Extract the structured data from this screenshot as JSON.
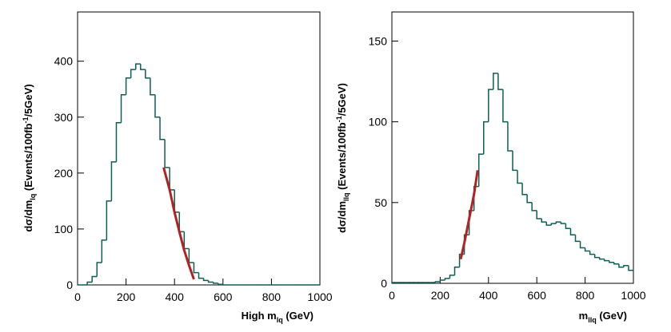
{
  "chart_data": [
    {
      "type": "histogram",
      "bins": [
        0,
        20,
        40,
        60,
        80,
        100,
        120,
        140,
        160,
        180,
        200,
        220,
        240,
        260,
        280,
        300,
        320,
        340,
        360,
        380,
        400,
        420,
        440,
        460,
        480,
        500,
        520,
        540,
        560,
        580,
        600,
        620,
        640,
        660,
        680,
        700,
        720,
        740,
        760,
        780,
        800,
        820,
        840,
        860,
        880,
        900,
        920,
        940,
        960,
        980,
        1000
      ],
      "values": [
        0,
        0,
        5,
        15,
        40,
        80,
        150,
        220,
        290,
        340,
        370,
        385,
        395,
        385,
        370,
        340,
        300,
        260,
        210,
        170,
        130,
        95,
        65,
        40,
        22,
        12,
        8,
        5,
        3,
        1,
        0,
        0,
        0,
        0,
        0,
        0,
        0,
        0,
        0,
        0,
        0,
        0,
        0,
        0,
        0,
        0,
        0,
        0,
        0,
        0
      ],
      "color": "#0f5e52",
      "xlim": [
        0,
        1000
      ],
      "xticks": [
        0,
        200,
        400,
        600,
        800,
        1000
      ],
      "ylim": [
        0,
        488
      ],
      "yticks": [
        0,
        100,
        200,
        300,
        400
      ],
      "x_label": [
        "High m",
        "lq",
        " (GeV)"
      ],
      "y_label": [
        "dσ/dm",
        "lq",
        " (Events/100fb",
        "-1",
        "/5GeV)"
      ],
      "fit": {
        "color": "#b22222",
        "x": [
          355,
          380,
          400,
          420,
          440,
          460,
          480
        ],
        "values": [
          210,
          170,
          130,
          95,
          62,
          35,
          10
        ]
      }
    },
    {
      "type": "histogram",
      "bins": [
        0,
        20,
        40,
        60,
        80,
        100,
        120,
        140,
        160,
        180,
        200,
        220,
        240,
        260,
        280,
        300,
        320,
        340,
        360,
        380,
        400,
        420,
        440,
        460,
        480,
        500,
        520,
        540,
        560,
        580,
        600,
        620,
        640,
        660,
        680,
        700,
        720,
        740,
        760,
        780,
        800,
        820,
        840,
        860,
        880,
        900,
        920,
        940,
        960,
        980,
        1000
      ],
      "values": [
        0.5,
        0.5,
        0.5,
        0.5,
        0.5,
        0.5,
        0.5,
        0.5,
        0.5,
        1,
        2,
        3,
        5,
        10,
        18,
        30,
        45,
        60,
        80,
        100,
        120,
        130,
        120,
        100,
        82,
        70,
        62,
        55,
        50,
        45,
        40,
        38,
        36,
        37,
        38,
        37,
        34,
        30,
        26,
        22,
        20,
        18,
        16,
        15,
        14,
        13,
        12,
        10,
        11,
        8
      ],
      "color": "#0f5e52",
      "xlim": [
        0,
        1000
      ],
      "xticks": [
        0,
        200,
        400,
        600,
        800,
        1000
      ],
      "ylim": [
        0,
        168
      ],
      "yticks": [
        0,
        50,
        100,
        150
      ],
      "x_label": [
        "m",
        "llq",
        " (GeV)"
      ],
      "y_label": [
        "dσ/dm",
        "llq",
        " (Events/100fb",
        "-1",
        "/5GeV)"
      ],
      "fit": {
        "color": "#b22222",
        "x": [
          285,
          300,
          320,
          340,
          355
        ],
        "values": [
          15,
          25,
          40,
          55,
          70
        ]
      }
    }
  ]
}
